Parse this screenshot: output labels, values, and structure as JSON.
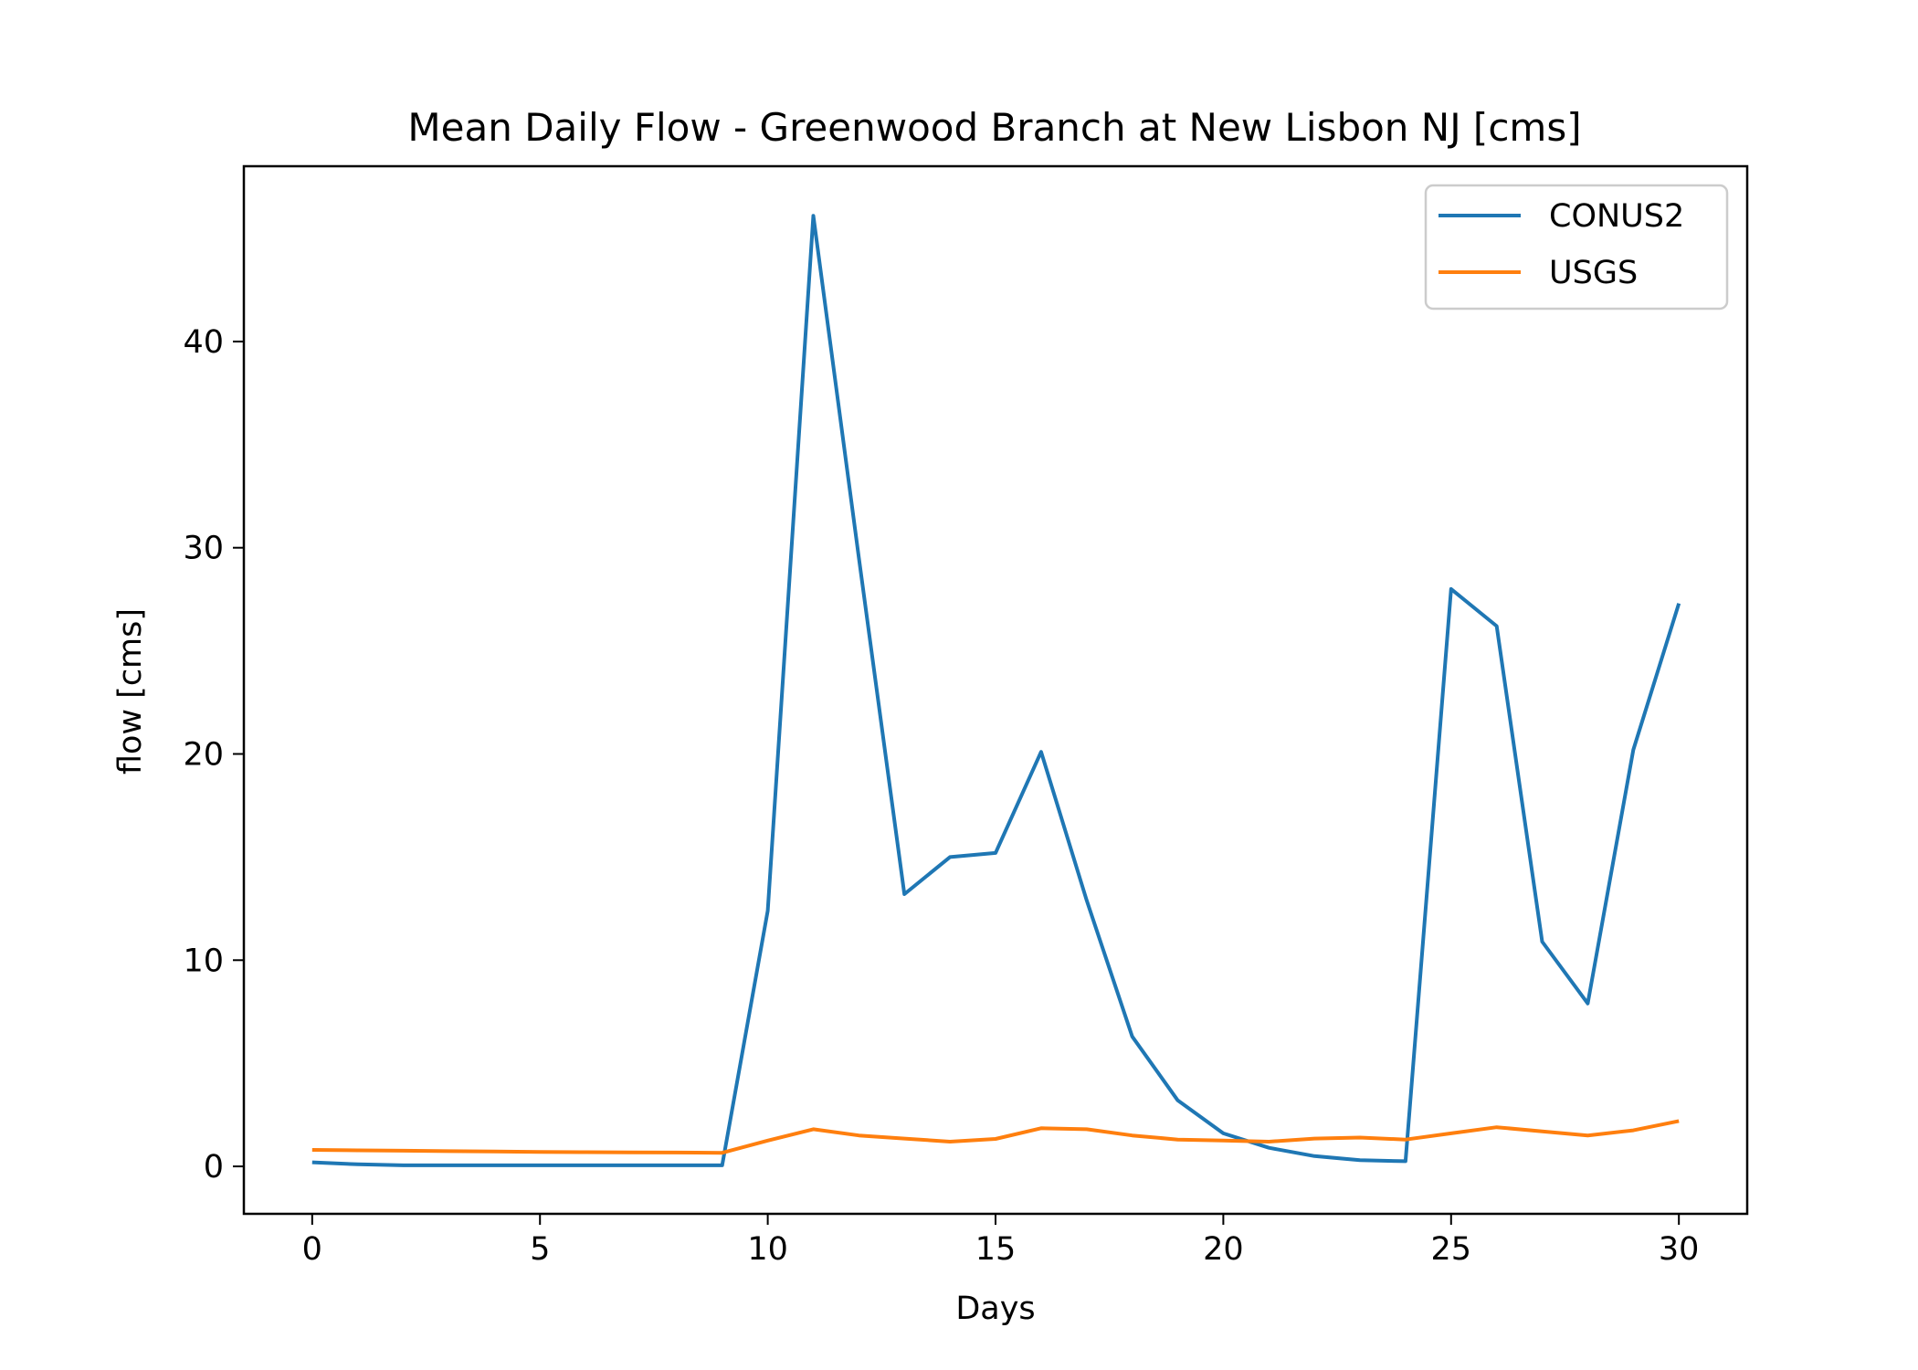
{
  "chart_data": {
    "type": "line",
    "title": "Mean Daily Flow - Greenwood Branch at New Lisbon NJ [cms]",
    "xlabel": "Days",
    "ylabel": "flow [cms]",
    "xlim": [
      -1.5,
      31.5
    ],
    "ylim": [
      -2.3,
      48.5
    ],
    "xticks": [
      0,
      5,
      10,
      15,
      20,
      25,
      30
    ],
    "yticks": [
      0,
      10,
      20,
      30,
      40
    ],
    "grid": false,
    "legend_position": "top-right",
    "x": [
      0,
      1,
      2,
      3,
      4,
      5,
      6,
      7,
      8,
      9,
      10,
      11,
      12,
      13,
      14,
      15,
      16,
      17,
      18,
      19,
      20,
      21,
      22,
      23,
      24,
      25,
      26,
      27,
      28,
      29,
      30
    ],
    "series": [
      {
        "name": "CONUS2",
        "color": "#1f77b4",
        "values": [
          0.2,
          0.1,
          0.05,
          0.05,
          0.05,
          0.05,
          0.05,
          0.05,
          0.05,
          0.05,
          12.4,
          46.1,
          29.5,
          13.2,
          15.0,
          15.2,
          20.1,
          12.9,
          6.3,
          3.2,
          1.6,
          0.9,
          0.5,
          0.3,
          0.25,
          28.0,
          26.2,
          10.9,
          7.9,
          20.2,
          27.3
        ]
      },
      {
        "name": "USGS",
        "color": "#ff7f0e",
        "values": [
          0.8,
          0.78,
          0.76,
          0.74,
          0.72,
          0.7,
          0.69,
          0.68,
          0.67,
          0.66,
          1.25,
          1.8,
          1.5,
          1.35,
          1.2,
          1.33,
          1.85,
          1.8,
          1.5,
          1.3,
          1.25,
          1.2,
          1.35,
          1.4,
          1.3,
          1.6,
          1.9,
          1.7,
          1.5,
          1.75,
          2.2
        ]
      }
    ]
  }
}
